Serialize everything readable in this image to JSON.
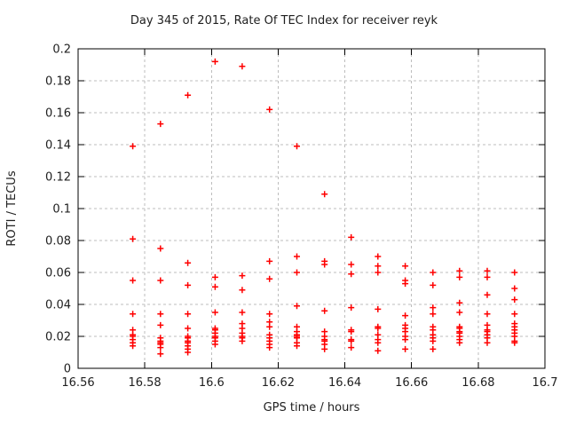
{
  "window": {
    "background": "#ffffff"
  },
  "chart_data": {
    "type": "scatter",
    "title": "Day 345 of 2015, Rate Of TEC Index for receiver reyk",
    "xlabel": "GPS time / hours",
    "ylabel": "ROTI / TECUs",
    "xlim": [
      16.56,
      16.7
    ],
    "ylim": [
      0,
      0.2
    ],
    "x_ticks": [
      16.56,
      16.58,
      16.6,
      16.62,
      16.64,
      16.66,
      16.68,
      16.7
    ],
    "x_tick_labels": [
      "16.56",
      "16.58",
      "16.6",
      "16.62",
      "16.64",
      "16.66",
      "16.68",
      "16.7"
    ],
    "y_ticks": [
      0,
      0.02,
      0.04,
      0.06,
      0.08,
      0.1,
      0.12,
      0.14,
      0.16,
      0.18,
      0.2
    ],
    "y_tick_labels": [
      "0",
      "0.02",
      "0.04",
      "0.06",
      "0.08",
      "0.1",
      "0.12",
      "0.14",
      "0.16",
      "0.18",
      "0.2"
    ],
    "grid": true,
    "grid_style": "dashed",
    "grid_color": "#bdbdbd",
    "axis_color": "#000000",
    "text_color": "#202020",
    "legend": null,
    "series": [
      {
        "marker": "plus",
        "color": "#ff0000",
        "points": [
          [
            16.5764,
            0.139
          ],
          [
            16.5764,
            0.081
          ],
          [
            16.5764,
            0.055
          ],
          [
            16.5764,
            0.034
          ],
          [
            16.5764,
            0.024
          ],
          [
            16.5764,
            0.021
          ],
          [
            16.5764,
            0.02
          ],
          [
            16.5764,
            0.018
          ],
          [
            16.5764,
            0.016
          ],
          [
            16.5764,
            0.014
          ],
          [
            16.5847,
            0.153
          ],
          [
            16.5847,
            0.075
          ],
          [
            16.5847,
            0.055
          ],
          [
            16.5847,
            0.034
          ],
          [
            16.5847,
            0.027
          ],
          [
            16.5847,
            0.019
          ],
          [
            16.5847,
            0.017
          ],
          [
            16.5847,
            0.016
          ],
          [
            16.5847,
            0.015
          ],
          [
            16.5847,
            0.013
          ],
          [
            16.5847,
            0.009
          ],
          [
            16.5929,
            0.171
          ],
          [
            16.5929,
            0.066
          ],
          [
            16.5929,
            0.052
          ],
          [
            16.5929,
            0.034
          ],
          [
            16.5929,
            0.025
          ],
          [
            16.5929,
            0.02
          ],
          [
            16.5929,
            0.019
          ],
          [
            16.5929,
            0.017
          ],
          [
            16.5929,
            0.016
          ],
          [
            16.5929,
            0.014
          ],
          [
            16.5929,
            0.012
          ],
          [
            16.5929,
            0.01
          ],
          [
            16.6011,
            0.192
          ],
          [
            16.6011,
            0.057
          ],
          [
            16.6011,
            0.051
          ],
          [
            16.6011,
            0.035
          ],
          [
            16.6011,
            0.025
          ],
          [
            16.6011,
            0.024
          ],
          [
            16.6011,
            0.022
          ],
          [
            16.6011,
            0.02
          ],
          [
            16.6011,
            0.019
          ],
          [
            16.6011,
            0.017
          ],
          [
            16.6011,
            0.015
          ],
          [
            16.6092,
            0.189
          ],
          [
            16.6092,
            0.058
          ],
          [
            16.6092,
            0.049
          ],
          [
            16.6092,
            0.035
          ],
          [
            16.6092,
            0.028
          ],
          [
            16.6092,
            0.025
          ],
          [
            16.6092,
            0.022
          ],
          [
            16.6092,
            0.02
          ],
          [
            16.6092,
            0.019
          ],
          [
            16.6092,
            0.017
          ],
          [
            16.6174,
            0.162
          ],
          [
            16.6174,
            0.067
          ],
          [
            16.6174,
            0.056
          ],
          [
            16.6174,
            0.034
          ],
          [
            16.6174,
            0.029
          ],
          [
            16.6174,
            0.026
          ],
          [
            16.6174,
            0.021
          ],
          [
            16.6174,
            0.019
          ],
          [
            16.6174,
            0.017
          ],
          [
            16.6174,
            0.015
          ],
          [
            16.6174,
            0.013
          ],
          [
            16.6256,
            0.139
          ],
          [
            16.6256,
            0.07
          ],
          [
            16.6256,
            0.06
          ],
          [
            16.6256,
            0.039
          ],
          [
            16.6256,
            0.026
          ],
          [
            16.6256,
            0.023
          ],
          [
            16.6256,
            0.021
          ],
          [
            16.6256,
            0.02
          ],
          [
            16.6256,
            0.019
          ],
          [
            16.6256,
            0.016
          ],
          [
            16.6256,
            0.014
          ],
          [
            16.6339,
            0.109
          ],
          [
            16.6339,
            0.067
          ],
          [
            16.6339,
            0.065
          ],
          [
            16.6339,
            0.036
          ],
          [
            16.6339,
            0.023
          ],
          [
            16.6339,
            0.02
          ],
          [
            16.6339,
            0.018
          ],
          [
            16.6339,
            0.017
          ],
          [
            16.6339,
            0.015
          ],
          [
            16.6339,
            0.012
          ],
          [
            16.6419,
            0.082
          ],
          [
            16.6419,
            0.065
          ],
          [
            16.6419,
            0.059
          ],
          [
            16.6419,
            0.038
          ],
          [
            16.6419,
            0.024
          ],
          [
            16.6419,
            0.023
          ],
          [
            16.6419,
            0.018
          ],
          [
            16.6419,
            0.017
          ],
          [
            16.6419,
            0.013
          ],
          [
            16.6499,
            0.07
          ],
          [
            16.6499,
            0.064
          ],
          [
            16.6499,
            0.06
          ],
          [
            16.6499,
            0.037
          ],
          [
            16.6499,
            0.026
          ],
          [
            16.6499,
            0.025
          ],
          [
            16.6499,
            0.021
          ],
          [
            16.6499,
            0.018
          ],
          [
            16.6499,
            0.016
          ],
          [
            16.6499,
            0.011
          ],
          [
            16.6581,
            0.064
          ],
          [
            16.6581,
            0.055
          ],
          [
            16.6581,
            0.053
          ],
          [
            16.6581,
            0.033
          ],
          [
            16.6581,
            0.027
          ],
          [
            16.6581,
            0.025
          ],
          [
            16.6581,
            0.023
          ],
          [
            16.6581,
            0.02
          ],
          [
            16.6581,
            0.018
          ],
          [
            16.6581,
            0.012
          ],
          [
            16.6664,
            0.06
          ],
          [
            16.6664,
            0.052
          ],
          [
            16.6664,
            0.038
          ],
          [
            16.6664,
            0.034
          ],
          [
            16.6664,
            0.026
          ],
          [
            16.6664,
            0.024
          ],
          [
            16.6664,
            0.021
          ],
          [
            16.6664,
            0.019
          ],
          [
            16.6664,
            0.017
          ],
          [
            16.6664,
            0.012
          ],
          [
            16.6744,
            0.061
          ],
          [
            16.6744,
            0.057
          ],
          [
            16.6744,
            0.041
          ],
          [
            16.6744,
            0.035
          ],
          [
            16.6744,
            0.026
          ],
          [
            16.6744,
            0.025
          ],
          [
            16.6744,
            0.023
          ],
          [
            16.6744,
            0.022
          ],
          [
            16.6744,
            0.02
          ],
          [
            16.6744,
            0.018
          ],
          [
            16.6744,
            0.016
          ],
          [
            16.6827,
            0.061
          ],
          [
            16.6827,
            0.057
          ],
          [
            16.6827,
            0.046
          ],
          [
            16.6827,
            0.034
          ],
          [
            16.6827,
            0.027
          ],
          [
            16.6827,
            0.024
          ],
          [
            16.6827,
            0.023
          ],
          [
            16.6827,
            0.021
          ],
          [
            16.6827,
            0.019
          ],
          [
            16.6827,
            0.016
          ],
          [
            16.6909,
            0.06
          ],
          [
            16.6909,
            0.05
          ],
          [
            16.6909,
            0.043
          ],
          [
            16.6909,
            0.034
          ],
          [
            16.6909,
            0.028
          ],
          [
            16.6909,
            0.026
          ],
          [
            16.6909,
            0.024
          ],
          [
            16.6909,
            0.022
          ],
          [
            16.6909,
            0.02
          ],
          [
            16.6909,
            0.017
          ],
          [
            16.6909,
            0.016
          ]
        ]
      }
    ]
  }
}
